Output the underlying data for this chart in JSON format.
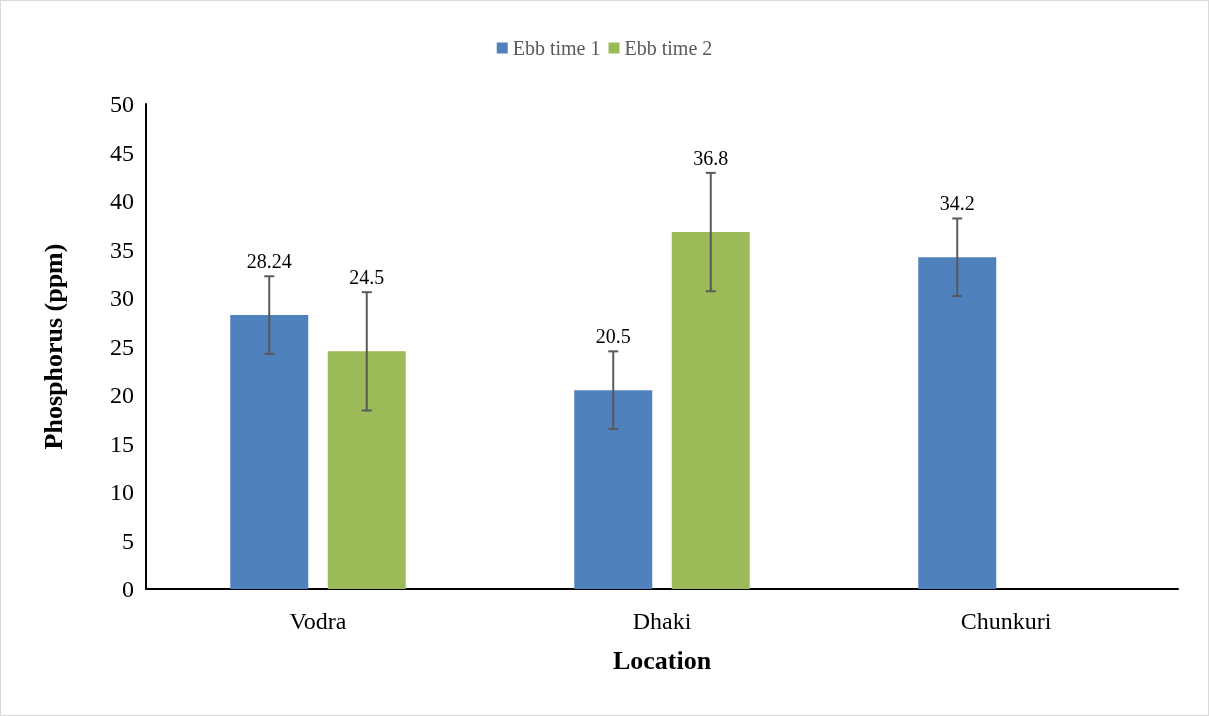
{
  "chart_data": {
    "type": "bar",
    "xlabel": "Location",
    "ylabel": "Phosphorus (ppm)",
    "categories": [
      "Vodra",
      "Dhaki",
      "Chunkuri"
    ],
    "series": [
      {
        "name": "Ebb time 1",
        "color": "#4f81bd",
        "values": [
          28.24,
          20.5,
          34.2
        ],
        "errors": [
          4,
          4,
          4
        ]
      },
      {
        "name": "Ebb time 2",
        "color": "#9bbb59",
        "values": [
          24.5,
          36.8,
          null
        ],
        "errors": [
          6.1,
          6.1,
          null
        ]
      }
    ],
    "ylim": [
      0,
      50
    ],
    "yticks": [
      0,
      5,
      10,
      15,
      20,
      25,
      30,
      35,
      40,
      45,
      50
    ],
    "grid": false,
    "legend": "top",
    "data_labels": true
  }
}
